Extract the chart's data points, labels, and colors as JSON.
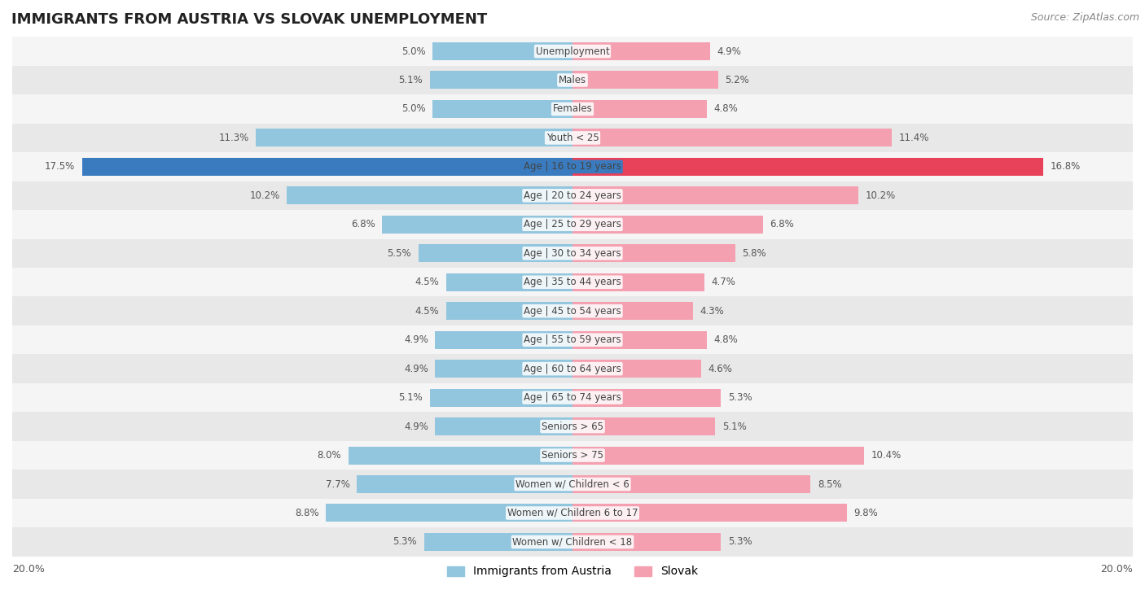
{
  "title": "IMMIGRANTS FROM AUSTRIA VS SLOVAK UNEMPLOYMENT",
  "source": "Source: ZipAtlas.com",
  "categories": [
    "Unemployment",
    "Males",
    "Females",
    "Youth < 25",
    "Age | 16 to 19 years",
    "Age | 20 to 24 years",
    "Age | 25 to 29 years",
    "Age | 30 to 34 years",
    "Age | 35 to 44 years",
    "Age | 45 to 54 years",
    "Age | 55 to 59 years",
    "Age | 60 to 64 years",
    "Age | 65 to 74 years",
    "Seniors > 65",
    "Seniors > 75",
    "Women w/ Children < 6",
    "Women w/ Children 6 to 17",
    "Women w/ Children < 18"
  ],
  "austria_values": [
    5.0,
    5.1,
    5.0,
    11.3,
    17.5,
    10.2,
    6.8,
    5.5,
    4.5,
    4.5,
    4.9,
    4.9,
    5.1,
    4.9,
    8.0,
    7.7,
    8.8,
    5.3
  ],
  "slovak_values": [
    4.9,
    5.2,
    4.8,
    11.4,
    16.8,
    10.2,
    6.8,
    5.8,
    4.7,
    4.3,
    4.8,
    4.6,
    5.3,
    5.1,
    10.4,
    8.5,
    9.8,
    5.3
  ],
  "austria_color": "#92c5de",
  "slovak_color": "#f4a0b0",
  "highlight_austria_color": "#3a7bbf",
  "highlight_slovak_color": "#e8415a",
  "highlight_row": 4,
  "bar_height": 0.62,
  "row_bg_even": "#f5f5f5",
  "row_bg_odd": "#e8e8e8",
  "xlim": 20.0,
  "legend_austria": "Immigrants from Austria",
  "legend_slovak": "Slovak",
  "title_fontsize": 13,
  "source_fontsize": 9,
  "label_fontsize": 8.5,
  "cat_fontsize": 8.5,
  "legend_fontsize": 10,
  "value_color": "#555555",
  "cat_label_color": "#444444",
  "highlight_value_color": "#ffffff",
  "highlight_cat_color": "#ffffff"
}
